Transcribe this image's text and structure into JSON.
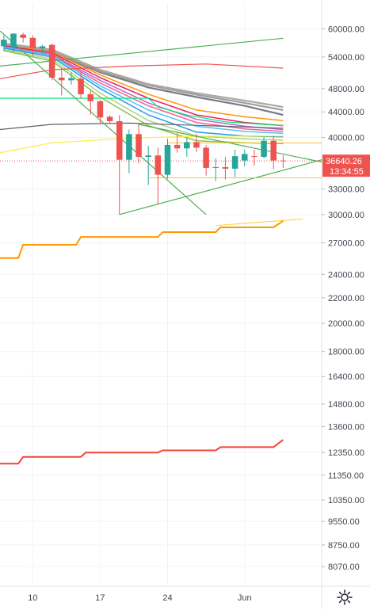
{
  "colors": {
    "up": "#26a69a",
    "down": "#ef5350",
    "grid": "#f0f3fa",
    "axis_text": "#434651",
    "badge": "#ef5350",
    "ribbon": [
      "#787b86",
      "#9e9e9e",
      "#b0a8a0",
      "#ff9800",
      "#e91e63",
      "#ba68c8",
      "#f06292",
      "#4fc3f7",
      "#2196f3",
      "#aed581",
      "#8bc34a"
    ],
    "kijun": "#ff9800",
    "red_base": "#f44336",
    "rising_green": "#4caf50",
    "red_top": "#ef5350",
    "yellow": "#ffeb3b",
    "dark_ma": "#5d606b",
    "spring": "#00e676"
  },
  "chart_data": {
    "type": "candlestick",
    "title": "",
    "yscale": "log",
    "ylim": [
      7500,
      66000
    ],
    "x_ticks": [
      {
        "label": "10",
        "day": 10
      },
      {
        "label": "17",
        "day": 17
      },
      {
        "label": "24",
        "day": 24
      },
      {
        "label": "Jun",
        "day": 32
      }
    ],
    "xlim": [
      6.6,
      40
    ],
    "y_ticks": [
      "60000.00",
      "54000.00",
      "48000.00",
      "44000.00",
      "40000.00",
      "36640.26",
      "33000.00",
      "30000.00",
      "27000.00",
      "24000.00",
      "22000.00",
      "20000.00",
      "18000.00",
      "16400.00",
      "14800.00",
      "13600.00",
      "12350.00",
      "11350.00",
      "10350.00",
      "9550.00",
      "8750.00",
      "8070.00"
    ],
    "y_tick_values": [
      60000,
      54000,
      48000,
      44000,
      40000,
      36640.26,
      33000,
      30000,
      27000,
      24000,
      22000,
      20000,
      18000,
      16400,
      14800,
      13600,
      12350,
      11350,
      10350,
      9550,
      8750,
      8070
    ],
    "last_price": "36640.26",
    "countdown": "13:34:55",
    "candles": [
      {
        "day": 7,
        "o": 56200,
        "h": 58500,
        "l": 55200,
        "c": 57600
      },
      {
        "day": 8,
        "o": 56000,
        "h": 59000,
        "l": 55000,
        "c": 58900
      },
      {
        "day": 9,
        "o": 58700,
        "h": 59100,
        "l": 57000,
        "c": 58000
      },
      {
        "day": 10,
        "o": 58000,
        "h": 58500,
        "l": 54200,
        "c": 55800
      },
      {
        "day": 11,
        "o": 55800,
        "h": 56500,
        "l": 54700,
        "c": 56200
      },
      {
        "day": 12,
        "o": 56500,
        "h": 56800,
        "l": 49500,
        "c": 50000
      },
      {
        "day": 13,
        "o": 50000,
        "h": 51800,
        "l": 46800,
        "c": 49500
      },
      {
        "day": 14,
        "o": 49500,
        "h": 51000,
        "l": 48700,
        "c": 49900
      },
      {
        "day": 15,
        "o": 49800,
        "h": 51200,
        "l": 46300,
        "c": 47000
      },
      {
        "day": 16,
        "o": 47000,
        "h": 47600,
        "l": 43500,
        "c": 45800
      },
      {
        "day": 17,
        "o": 45800,
        "h": 46000,
        "l": 42100,
        "c": 43100
      },
      {
        "day": 18,
        "o": 43200,
        "h": 43500,
        "l": 42100,
        "c": 42500
      },
      {
        "day": 19,
        "o": 42500,
        "h": 43500,
        "l": 30000,
        "c": 36800
      },
      {
        "day": 20,
        "o": 36800,
        "h": 41200,
        "l": 35000,
        "c": 40500
      },
      {
        "day": 21,
        "o": 40500,
        "h": 42000,
        "l": 36300,
        "c": 37200
      },
      {
        "day": 22,
        "o": 37200,
        "h": 38800,
        "l": 33500,
        "c": 37400
      },
      {
        "day": 23,
        "o": 37400,
        "h": 38500,
        "l": 31200,
        "c": 34800
      },
      {
        "day": 24,
        "o": 34800,
        "h": 39800,
        "l": 34300,
        "c": 38900
      },
      {
        "day": 25,
        "o": 38900,
        "h": 40800,
        "l": 37800,
        "c": 38400
      },
      {
        "day": 26,
        "o": 38400,
        "h": 40000,
        "l": 37200,
        "c": 39300
      },
      {
        "day": 27,
        "o": 39300,
        "h": 40500,
        "l": 37900,
        "c": 38500
      },
      {
        "day": 28,
        "o": 38500,
        "h": 38900,
        "l": 34700,
        "c": 35700
      },
      {
        "day": 29,
        "o": 35700,
        "h": 37000,
        "l": 34000,
        "c": 35800
      },
      {
        "day": 30,
        "o": 35800,
        "h": 37200,
        "l": 34200,
        "c": 35600
      },
      {
        "day": 31,
        "o": 35600,
        "h": 38200,
        "l": 34500,
        "c": 37300
      },
      {
        "day": 32,
        "o": 36700,
        "h": 38200,
        "l": 35900,
        "c": 37600
      },
      {
        "day": 33,
        "o": 37300,
        "h": 38200,
        "l": 36000,
        "c": 37200
      },
      {
        "day": 34,
        "o": 37200,
        "h": 40100,
        "l": 37000,
        "c": 39500
      },
      {
        "day": 35,
        "o": 39500,
        "h": 40200,
        "l": 35500,
        "c": 36700
      },
      {
        "day": 36,
        "o": 36700,
        "h": 37400,
        "l": 35700,
        "c": 36640
      }
    ],
    "ribbon_mas": [
      [
        [
          7,
          56500
        ],
        [
          12,
          55000
        ],
        [
          17,
          51000
        ],
        [
          22,
          48200
        ],
        [
          27,
          46500
        ],
        [
          32,
          45000
        ],
        [
          36,
          43500
        ]
      ],
      [
        [
          7,
          56500
        ],
        [
          12,
          55200
        ],
        [
          17,
          51200
        ],
        [
          22,
          48600
        ],
        [
          27,
          46900
        ],
        [
          32,
          45500
        ],
        [
          36,
          44300
        ]
      ],
      [
        [
          7,
          56800
        ],
        [
          12,
          55500
        ],
        [
          17,
          51500
        ],
        [
          22,
          48800
        ],
        [
          27,
          47200
        ],
        [
          32,
          45900
        ],
        [
          36,
          44800
        ]
      ],
      [
        [
          7,
          56400
        ],
        [
          12,
          55000
        ],
        [
          17,
          50500
        ],
        [
          22,
          47000
        ],
        [
          27,
          44300
        ],
        [
          32,
          43200
        ],
        [
          36,
          42600
        ]
      ],
      [
        [
          7,
          56300
        ],
        [
          12,
          54800
        ],
        [
          17,
          50000
        ],
        [
          22,
          46300
        ],
        [
          27,
          43500
        ],
        [
          32,
          42300
        ],
        [
          36,
          41800
        ]
      ],
      [
        [
          7,
          56100
        ],
        [
          12,
          54500
        ],
        [
          17,
          49500
        ],
        [
          22,
          45500
        ],
        [
          27,
          42800
        ],
        [
          32,
          41700
        ],
        [
          36,
          41200
        ]
      ],
      [
        [
          7,
          56000
        ],
        [
          12,
          54400
        ],
        [
          17,
          49000
        ],
        [
          22,
          45000
        ],
        [
          27,
          42300
        ],
        [
          32,
          41300
        ],
        [
          36,
          40900
        ]
      ],
      [
        [
          7,
          56000
        ],
        [
          12,
          54300
        ],
        [
          17,
          48500
        ],
        [
          22,
          44300
        ],
        [
          27,
          41700
        ],
        [
          32,
          40900
        ],
        [
          36,
          40600
        ]
      ],
      [
        [
          7,
          55800
        ],
        [
          12,
          54000
        ],
        [
          17,
          48000
        ],
        [
          22,
          43500
        ],
        [
          27,
          40800
        ],
        [
          32,
          40200
        ],
        [
          36,
          40100
        ]
      ],
      [
        [
          7,
          55500
        ],
        [
          12,
          53600
        ],
        [
          17,
          47200
        ],
        [
          22,
          42600
        ],
        [
          27,
          40200
        ],
        [
          32,
          39800
        ],
        [
          36,
          39600
        ]
      ],
      [
        [
          7,
          55300
        ],
        [
          12,
          53200
        ],
        [
          17,
          46500
        ],
        [
          22,
          41800
        ],
        [
          27,
          39500
        ],
        [
          32,
          39200
        ],
        [
          36,
          39100
        ]
      ]
    ],
    "kijun_steps": [
      [
        6.6,
        25500
      ],
      [
        8.5,
        25500
      ],
      [
        9,
        26800
      ],
      [
        14.5,
        26800
      ],
      [
        15,
        27600
      ],
      [
        23,
        27600
      ],
      [
        23.5,
        28100
      ],
      [
        29,
        28100
      ],
      [
        29.5,
        28600
      ],
      [
        35,
        28600
      ],
      [
        36,
        29300
      ]
    ],
    "red_steps": [
      [
        6.6,
        11850
      ],
      [
        8.5,
        11850
      ],
      [
        9,
        12150
      ],
      [
        15,
        12150
      ],
      [
        15.5,
        12350
      ],
      [
        23,
        12350
      ],
      [
        23.5,
        12450
      ],
      [
        29,
        12450
      ],
      [
        29.5,
        12600
      ],
      [
        35,
        12600
      ],
      [
        36,
        12950
      ]
    ],
    "support_y": 34400,
    "resistance_y": 39200,
    "trendlines": [
      {
        "c": "#4caf50",
        "p": [
          [
            6.6,
            52200
          ],
          [
            36,
            57900
          ]
        ]
      },
      {
        "c": "#ef5350",
        "p": [
          [
            6.6,
            49800
          ],
          [
            12,
            51500
          ],
          [
            20,
            52200
          ],
          [
            28,
            52600
          ],
          [
            36,
            51800
          ]
        ]
      },
      {
        "c": "#ffeb3b",
        "p": [
          [
            6.6,
            37800
          ],
          [
            12,
            39200
          ],
          [
            20,
            39900
          ],
          [
            28,
            40200
          ],
          [
            36,
            40200
          ]
        ]
      },
      {
        "c": "#5d606b",
        "p": [
          [
            6.6,
            41200
          ],
          [
            12,
            42000
          ],
          [
            20,
            42200
          ],
          [
            28,
            41800
          ],
          [
            36,
            41400
          ]
        ]
      },
      {
        "c": "#00e676",
        "p": [
          [
            6.6,
            46300
          ],
          [
            12,
            46300
          ],
          [
            20,
            46300
          ],
          [
            22,
            46300
          ],
          [
            23,
            44800
          ],
          [
            26,
            43500
          ],
          [
            30,
            42400
          ],
          [
            36,
            41800
          ]
        ]
      },
      {
        "c": "#4caf50",
        "p": [
          [
            6.6,
            59500
          ],
          [
            28,
            30000
          ]
        ]
      },
      {
        "c": "#4caf50",
        "p": [
          [
            19,
            30000
          ],
          [
            40,
            36800
          ]
        ]
      },
      {
        "c": "#4caf50",
        "p": [
          [
            21,
            42000
          ],
          [
            40,
            36500
          ]
        ]
      },
      {
        "c": "#ffd54f",
        "p": [
          [
            29,
            28800
          ],
          [
            38,
            29500
          ]
        ]
      }
    ]
  }
}
